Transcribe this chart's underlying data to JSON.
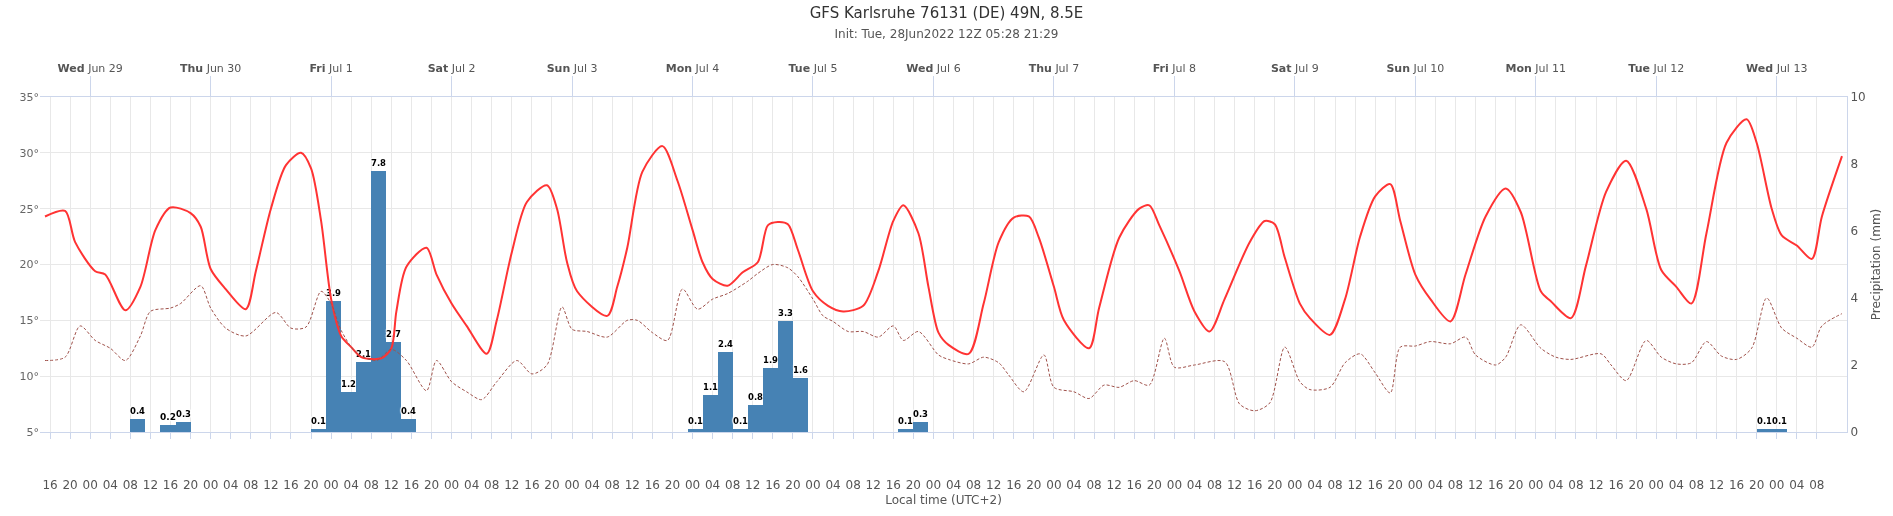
{
  "chart_data": {
    "type": "line",
    "title": "GFS Karlsruhe 76131 (DE) 49N, 8.5E",
    "subtitle": "Init: Tue, 28Jun2022 12Z 05:28 21:29",
    "xlabel": "Local time (UTC+2)",
    "y2label": "Precipitation (mm)",
    "xlim": [
      "2022-06-28T14:00",
      "2022-07-13T14:00"
    ],
    "xticks": [
      {
        "value": "2022-06-28T16:00",
        "label": "16"
      },
      {
        "value": "2022-06-28T20:00",
        "label": "20"
      },
      {
        "value": "2022-06-29T00:00",
        "label": "00"
      },
      {
        "value": "2022-06-29T04:00",
        "label": "04"
      },
      {
        "value": "2022-06-29T08:00",
        "label": "08"
      },
      {
        "value": "2022-06-29T12:00",
        "label": "12"
      },
      {
        "value": "2022-06-29T16:00",
        "label": "16"
      },
      {
        "value": "2022-06-29T20:00",
        "label": "20"
      },
      {
        "value": "2022-06-30T00:00",
        "label": "00"
      },
      {
        "value": "2022-06-30T04:00",
        "label": "04"
      },
      {
        "value": "2022-06-30T08:00",
        "label": "08"
      },
      {
        "value": "2022-06-30T12:00",
        "label": "12"
      },
      {
        "value": "2022-06-30T16:00",
        "label": "16"
      },
      {
        "value": "2022-06-30T20:00",
        "label": "20"
      },
      {
        "value": "2022-07-01T00:00",
        "label": "00"
      },
      {
        "value": "2022-07-01T04:00",
        "label": "04"
      },
      {
        "value": "2022-07-01T08:00",
        "label": "08"
      },
      {
        "value": "2022-07-01T12:00",
        "label": "12"
      },
      {
        "value": "2022-07-01T16:00",
        "label": "16"
      },
      {
        "value": "2022-07-01T20:00",
        "label": "20"
      },
      {
        "value": "2022-07-02T00:00",
        "label": "00"
      },
      {
        "value": "2022-07-02T04:00",
        "label": "04"
      },
      {
        "value": "2022-07-02T08:00",
        "label": "08"
      },
      {
        "value": "2022-07-02T12:00",
        "label": "12"
      },
      {
        "value": "2022-07-02T16:00",
        "label": "16"
      },
      {
        "value": "2022-07-02T20:00",
        "label": "20"
      },
      {
        "value": "2022-07-03T00:00",
        "label": "00"
      },
      {
        "value": "2022-07-03T04:00",
        "label": "04"
      },
      {
        "value": "2022-07-03T08:00",
        "label": "08"
      },
      {
        "value": "2022-07-03T12:00",
        "label": "12"
      },
      {
        "value": "2022-07-03T16:00",
        "label": "16"
      },
      {
        "value": "2022-07-03T20:00",
        "label": "20"
      },
      {
        "value": "2022-07-04T00:00",
        "label": "00"
      },
      {
        "value": "2022-07-04T04:00",
        "label": "04"
      },
      {
        "value": "2022-07-04T08:00",
        "label": "08"
      },
      {
        "value": "2022-07-04T12:00",
        "label": "12"
      },
      {
        "value": "2022-07-04T16:00",
        "label": "16"
      },
      {
        "value": "2022-07-04T20:00",
        "label": "20"
      },
      {
        "value": "2022-07-05T00:00",
        "label": "00"
      },
      {
        "value": "2022-07-05T04:00",
        "label": "04"
      },
      {
        "value": "2022-07-05T08:00",
        "label": "08"
      },
      {
        "value": "2022-07-05T12:00",
        "label": "12"
      },
      {
        "value": "2022-07-05T16:00",
        "label": "16"
      },
      {
        "value": "2022-07-05T20:00",
        "label": "20"
      },
      {
        "value": "2022-07-06T00:00",
        "label": "00"
      },
      {
        "value": "2022-07-06T04:00",
        "label": "04"
      },
      {
        "value": "2022-07-06T08:00",
        "label": "08"
      },
      {
        "value": "2022-07-06T12:00",
        "label": "12"
      },
      {
        "value": "2022-07-06T16:00",
        "label": "16"
      },
      {
        "value": "2022-07-06T20:00",
        "label": "20"
      },
      {
        "value": "2022-07-07T00:00",
        "label": "00"
      },
      {
        "value": "2022-07-07T04:00",
        "label": "04"
      },
      {
        "value": "2022-07-07T08:00",
        "label": "08"
      },
      {
        "value": "2022-07-07T12:00",
        "label": "12"
      },
      {
        "value": "2022-07-07T16:00",
        "label": "16"
      },
      {
        "value": "2022-07-07T20:00",
        "label": "20"
      },
      {
        "value": "2022-07-08T00:00",
        "label": "00"
      },
      {
        "value": "2022-07-08T04:00",
        "label": "04"
      },
      {
        "value": "2022-07-08T08:00",
        "label": "08"
      },
      {
        "value": "2022-07-08T12:00",
        "label": "12"
      },
      {
        "value": "2022-07-08T16:00",
        "label": "16"
      },
      {
        "value": "2022-07-08T20:00",
        "label": "20"
      },
      {
        "value": "2022-07-09T00:00",
        "label": "00"
      },
      {
        "value": "2022-07-09T04:00",
        "label": "04"
      },
      {
        "value": "2022-07-09T08:00",
        "label": "08"
      },
      {
        "value": "2022-07-09T12:00",
        "label": "12"
      },
      {
        "value": "2022-07-09T16:00",
        "label": "16"
      },
      {
        "value": "2022-07-09T20:00",
        "label": "20"
      },
      {
        "value": "2022-07-10T00:00",
        "label": "00"
      },
      {
        "value": "2022-07-10T04:00",
        "label": "04"
      },
      {
        "value": "2022-07-10T08:00",
        "label": "08"
      },
      {
        "value": "2022-07-10T12:00",
        "label": "12"
      },
      {
        "value": "2022-07-10T16:00",
        "label": "16"
      },
      {
        "value": "2022-07-10T20:00",
        "label": "20"
      },
      {
        "value": "2022-07-11T00:00",
        "label": "00"
      },
      {
        "value": "2022-07-11T04:00",
        "label": "04"
      },
      {
        "value": "2022-07-11T08:00",
        "label": "08"
      },
      {
        "value": "2022-07-11T12:00",
        "label": "12"
      },
      {
        "value": "2022-07-11T16:00",
        "label": "16"
      },
      {
        "value": "2022-07-11T20:00",
        "label": "20"
      },
      {
        "value": "2022-07-12T00:00",
        "label": "00"
      },
      {
        "value": "2022-07-12T04:00",
        "label": "04"
      },
      {
        "value": "2022-07-12T08:00",
        "label": "08"
      },
      {
        "value": "2022-07-12T12:00",
        "label": "12"
      },
      {
        "value": "2022-07-12T16:00",
        "label": "16"
      },
      {
        "value": "2022-07-12T20:00",
        "label": "20"
      },
      {
        "value": "2022-07-13T00:00",
        "label": "00"
      },
      {
        "value": "2022-07-13T04:00",
        "label": "04"
      },
      {
        "value": "2022-07-13T08:00",
        "label": "08"
      }
    ],
    "x2lim": [
      "2022-06-28T14:00",
      "2022-07-13T14:00"
    ],
    "x2ticks": [
      {
        "value": "2022-06-29",
        "label": "Wed Jun 29"
      },
      {
        "value": "2022-06-30",
        "label": "Thu Jun 30"
      },
      {
        "value": "2022-07-01",
        "label": "Fri Jul 1"
      },
      {
        "value": "2022-07-02",
        "label": "Sat Jul 2"
      },
      {
        "value": "2022-07-03",
        "label": "Sun Jul 3"
      },
      {
        "value": "2022-07-04",
        "label": "Mon Jul 4"
      },
      {
        "value": "2022-07-05",
        "label": "Tue Jul 5"
      },
      {
        "value": "2022-07-06",
        "label": "Wed Jul 6"
      },
      {
        "value": "2022-07-07",
        "label": "Thu Jul 7"
      },
      {
        "value": "2022-07-08",
        "label": "Fri Jul 8"
      },
      {
        "value": "2022-07-09",
        "label": "Sat Jul 9"
      },
      {
        "value": "2022-07-10",
        "label": "Sun Jul 10"
      },
      {
        "value": "2022-07-11",
        "label": "Mon Jul 11"
      },
      {
        "value": "2022-07-12",
        "label": "Tue Jul 12"
      },
      {
        "value": "2022-07-13",
        "label": "Wed Jul 13"
      }
    ],
    "ylim": [
      5,
      35
    ],
    "yticks": [
      {
        "value": 5,
        "label": "5°"
      },
      {
        "value": 10,
        "label": "10°"
      },
      {
        "value": 15,
        "label": "15°"
      },
      {
        "value": 20,
        "label": "20°"
      },
      {
        "value": 25,
        "label": "25°"
      },
      {
        "value": 30,
        "label": "30°"
      },
      {
        "value": 35,
        "label": "35°"
      }
    ],
    "y2lim": [
      0,
      10
    ],
    "y2ticks": [
      0,
      2,
      4,
      6,
      8,
      10
    ],
    "grid": true,
    "marker": "none",
    "series": [
      {
        "type": "bar",
        "axis": "y2",
        "color": "#4682b4",
        "x": [
          "2022-06-29T09:30",
          "2022-06-29T15:30",
          "2022-06-29T18:30",
          "2022-06-30T21:30",
          "2022-07-01T00:30",
          "2022-07-01T03:30",
          "2022-07-01T06:30",
          "2022-07-01T09:30",
          "2022-07-01T12:30",
          "2022-07-01T15:30",
          "2022-07-04T00:30",
          "2022-07-04T03:30",
          "2022-07-04T06:30",
          "2022-07-04T09:30",
          "2022-07-04T12:30",
          "2022-07-04T15:30",
          "2022-07-04T18:30",
          "2022-07-04T21:30",
          "2022-07-05T18:30",
          "2022-07-05T21:30",
          "2022-07-12T21:30",
          "2022-07-13T00:30"
        ],
        "values": [
          0.4,
          0.2,
          0.3,
          0.1,
          3.9,
          1.2,
          2.1,
          7.8,
          2.7,
          0.4,
          0.1,
          1.1,
          2.4,
          0.1,
          0.8,
          1.9,
          3.3,
          1.6,
          0.1,
          0.3,
          0.1,
          0.1
        ],
        "value_labels": [
          "0.4",
          "0.2",
          "0.3",
          "0.1",
          "3.9",
          "1.2",
          "2.1",
          "7.8",
          "2.7",
          "0.4",
          "0.1",
          "1.1",
          "2.4",
          "0.1",
          "0.8",
          "1.9",
          "3.3",
          "1.6",
          "0.1",
          "0.3",
          "0.1",
          "0.1"
        ]
      },
      {
        "line_style": "solid",
        "color": "#ff3333",
        "x": [
          "2022-06-28T15:00",
          "2022-06-28T19:00",
          "2022-06-28T21:00",
          "2022-06-29T01:00",
          "2022-06-29T03:00",
          "2022-06-29T07:00",
          "2022-06-29T10:00",
          "2022-06-29T13:00",
          "2022-06-29T16:00",
          "2022-06-29T20:00",
          "2022-06-29T22:00",
          "2022-06-30T00:00",
          "2022-06-30T03:00",
          "2022-06-30T07:00",
          "2022-06-30T09:00",
          "2022-06-30T12:00",
          "2022-06-30T15:00",
          "2022-06-30T18:00",
          "2022-06-30T20:00",
          "2022-06-30T22:00",
          "2022-07-01T00:00",
          "2022-07-01T02:00",
          "2022-07-01T04:00",
          "2022-07-01T06:00",
          "2022-07-01T10:00",
          "2022-07-01T12:00",
          "2022-07-01T13:00",
          "2022-07-01T15:00",
          "2022-07-01T19:00",
          "2022-07-01T21:00",
          "2022-07-02T00:00",
          "2022-07-02T03:00",
          "2022-07-02T07:00",
          "2022-07-02T09:00",
          "2022-07-02T12:00",
          "2022-07-02T15:00",
          "2022-07-02T19:00",
          "2022-07-02T21:00",
          "2022-07-02T23:00",
          "2022-07-03T01:00",
          "2022-07-03T07:00",
          "2022-07-03T09:00",
          "2022-07-03T11:00",
          "2022-07-03T14:00",
          "2022-07-03T18:00",
          "2022-07-03T21:00",
          "2022-07-04T00:00",
          "2022-07-04T02:00",
          "2022-07-04T04:00",
          "2022-07-04T07:00",
          "2022-07-04T10:00",
          "2022-07-04T13:00",
          "2022-07-04T15:00",
          "2022-07-04T17:00",
          "2022-07-04T19:00",
          "2022-07-04T21:00",
          "2022-07-05T00:00",
          "2022-07-05T03:00",
          "2022-07-05T06:00",
          "2022-07-05T10:00",
          "2022-07-05T13:00",
          "2022-07-05T16:00",
          "2022-07-05T18:00",
          "2022-07-05T21:00",
          "2022-07-05T23:00",
          "2022-07-06T01:00",
          "2022-07-06T03:00",
          "2022-07-06T07:00",
          "2022-07-06T10:00",
          "2022-07-06T13:00",
          "2022-07-06T16:00",
          "2022-07-06T19:00",
          "2022-07-06T21:00",
          "2022-07-07T00:00",
          "2022-07-07T02:00",
          "2022-07-07T07:00",
          "2022-07-07T09:00",
          "2022-07-07T13:00",
          "2022-07-07T17:00",
          "2022-07-07T19:00",
          "2022-07-07T21:00",
          "2022-07-08T01:00",
          "2022-07-08T04:00",
          "2022-07-08T07:00",
          "2022-07-08T10:00",
          "2022-07-08T15:00",
          "2022-07-08T18:00",
          "2022-07-08T20:00",
          "2022-07-08T22:00",
          "2022-07-09T01:00",
          "2022-07-09T03:00",
          "2022-07-09T07:00",
          "2022-07-09T10:00",
          "2022-07-09T13:00",
          "2022-07-09T16:00",
          "2022-07-09T19:00",
          "2022-07-09T21:00",
          "2022-07-10T00:00",
          "2022-07-10T03:00",
          "2022-07-10T07:00",
          "2022-07-10T10:00",
          "2022-07-10T14:00",
          "2022-07-10T18:00",
          "2022-07-10T21:00",
          "2022-07-11T01:00",
          "2022-07-11T03:00",
          "2022-07-11T07:00",
          "2022-07-11T10:00",
          "2022-07-11T14:00",
          "2022-07-11T18:00",
          "2022-07-11T22:00",
          "2022-07-12T01:00",
          "2022-07-12T04:00",
          "2022-07-12T07:00",
          "2022-07-12T10:00",
          "2022-07-12T14:00",
          "2022-07-12T18:00",
          "2022-07-12T20:00",
          "2022-07-12T23:00",
          "2022-07-13T01:00",
          "2022-07-13T04:00",
          "2022-07-13T07:00",
          "2022-07-13T09:00",
          "2022-07-13T13:00"
        ],
        "values": [
          24.3,
          24.8,
          22.0,
          19.4,
          19.1,
          15.9,
          18.0,
          23.1,
          25.1,
          24.6,
          23.4,
          19.6,
          17.8,
          16.0,
          19.4,
          25.0,
          28.9,
          30.0,
          28.6,
          23.9,
          16.9,
          13.6,
          12.6,
          11.7,
          11.6,
          12.5,
          15.8,
          19.8,
          21.5,
          19.1,
          16.5,
          14.5,
          12.0,
          15.0,
          21.1,
          25.6,
          27.1,
          25.0,
          20.2,
          17.6,
          15.4,
          18.0,
          21.5,
          28.3,
          30.6,
          27.5,
          23.1,
          20.2,
          18.7,
          18.1,
          19.3,
          20.2,
          23.5,
          23.8,
          23.6,
          21.3,
          17.6,
          16.3,
          15.8,
          16.3,
          19.4,
          23.9,
          25.3,
          22.8,
          18.0,
          13.9,
          12.8,
          12.0,
          16.5,
          22.0,
          24.2,
          24.3,
          22.4,
          18.0,
          15.0,
          12.5,
          16.1,
          22.4,
          25.0,
          25.3,
          23.5,
          19.4,
          15.8,
          14.0,
          16.9,
          22.0,
          23.9,
          23.6,
          20.6,
          16.5,
          15.2,
          13.7,
          16.9,
          22.5,
          26.1,
          27.2,
          23.9,
          19.1,
          16.9,
          14.9,
          19.1,
          24.3,
          26.8,
          24.7,
          17.6,
          16.7,
          15.2,
          19.9,
          26.5,
          29.3,
          25.0,
          19.5,
          18.0,
          16.5,
          22.8,
          30.9,
          33.0,
          30.9,
          25.0,
          22.6,
          21.7,
          20.5,
          24.3,
          29.7
        ]
      },
      {
        "line_style": "dashed",
        "color": "#a0524b",
        "x": [
          "2022-06-28T15:00",
          "2022-06-28T19:00",
          "2022-06-28T22:00",
          "2022-06-29T01:00",
          "2022-06-29T04:00",
          "2022-06-29T07:00",
          "2022-06-29T10:00",
          "2022-06-29T12:00",
          "2022-06-29T16:00",
          "2022-06-29T18:00",
          "2022-06-29T22:00",
          "2022-06-30T00:00",
          "2022-06-30T03:00",
          "2022-06-30T07:00",
          "2022-06-30T13:00",
          "2022-06-30T16:00",
          "2022-06-30T19:00",
          "2022-06-30T22:00",
          "2022-07-01T00:00",
          "2022-07-01T02:00",
          "2022-07-01T05:00",
          "2022-07-01T09:00",
          "2022-07-01T12:00",
          "2022-07-01T15:00",
          "2022-07-01T19:00",
          "2022-07-01T21:00",
          "2022-07-02T00:00",
          "2022-07-02T03:00",
          "2022-07-02T06:00",
          "2022-07-02T09:00",
          "2022-07-02T13:00",
          "2022-07-02T16:00",
          "2022-07-02T19:00",
          "2022-07-02T22:00",
          "2022-07-03T00:00",
          "2022-07-03T03:00",
          "2022-07-03T07:00",
          "2022-07-03T11:00",
          "2022-07-03T13:00",
          "2022-07-03T16:00",
          "2022-07-03T19:00",
          "2022-07-03T22:00",
          "2022-07-04T01:00",
          "2022-07-04T04:00",
          "2022-07-04T07:00",
          "2022-07-04T11:00",
          "2022-07-04T13:00",
          "2022-07-04T16:00",
          "2022-07-04T19:00",
          "2022-07-04T21:00",
          "2022-07-05T00:00",
          "2022-07-05T02:00",
          "2022-07-05T04:00",
          "2022-07-05T07:00",
          "2022-07-05T10:00",
          "2022-07-05T13:00",
          "2022-07-05T16:00",
          "2022-07-05T18:00",
          "2022-07-05T21:00",
          "2022-07-06T01:00",
          "2022-07-06T03:00",
          "2022-07-06T07:00",
          "2022-07-06T10:00",
          "2022-07-06T13:00",
          "2022-07-06T15:00",
          "2022-07-06T18:00",
          "2022-07-06T22:00",
          "2022-07-07T00:00",
          "2022-07-07T04:00",
          "2022-07-07T07:00",
          "2022-07-07T10:00",
          "2022-07-07T13:00",
          "2022-07-07T16:00",
          "2022-07-07T19:00",
          "2022-07-07T22:00",
          "2022-07-08T00:00",
          "2022-07-08T04:00",
          "2022-07-08T10:00",
          "2022-07-08T13:00",
          "2022-07-08T16:00",
          "2022-07-08T19:00",
          "2022-07-08T22:00",
          "2022-07-09T01:00",
          "2022-07-09T03:00",
          "2022-07-09T07:00",
          "2022-07-09T10:00",
          "2022-07-09T13:00",
          "2022-07-09T16:00",
          "2022-07-09T19:00",
          "2022-07-09T21:00",
          "2022-07-10T00:00",
          "2022-07-10T03:00",
          "2022-07-10T07:00",
          "2022-07-10T10:00",
          "2022-07-10T12:00",
          "2022-07-10T16:00",
          "2022-07-10T18:00",
          "2022-07-10T21:00",
          "2022-07-11T01:00",
          "2022-07-11T04:00",
          "2022-07-11T07:00",
          "2022-07-11T13:00",
          "2022-07-11T15:00",
          "2022-07-11T18:00",
          "2022-07-11T22:00",
          "2022-07-12T01:00",
          "2022-07-12T04:00",
          "2022-07-12T07:00",
          "2022-07-12T10:00",
          "2022-07-12T13:00",
          "2022-07-12T16:00",
          "2022-07-12T19:00",
          "2022-07-12T22:00",
          "2022-07-13T01:00",
          "2022-07-13T04:00",
          "2022-07-13T07:00",
          "2022-07-13T09:00",
          "2022-07-13T13:00"
        ],
        "values": [
          11.4,
          11.7,
          14.5,
          13.2,
          12.5,
          11.4,
          13.6,
          15.8,
          16.1,
          16.5,
          18.1,
          16.1,
          14.3,
          13.6,
          15.7,
          14.3,
          14.4,
          17.6,
          16.5,
          14.1,
          12.1,
          11.4,
          12.4,
          11.4,
          8.7,
          11.4,
          9.5,
          8.6,
          7.9,
          9.5,
          11.4,
          10.2,
          11.0,
          16.2,
          14.2,
          14.0,
          13.5,
          15.0,
          15.0,
          13.9,
          13.2,
          17.8,
          16.0,
          16.9,
          17.4,
          18.5,
          19.2,
          20.0,
          19.7,
          18.9,
          16.9,
          15.4,
          14.9,
          14.0,
          14.0,
          13.5,
          14.5,
          13.2,
          14.0,
          11.9,
          11.5,
          11.1,
          11.7,
          11.2,
          10.1,
          8.6,
          11.9,
          9.0,
          8.6,
          8.0,
          9.2,
          9.0,
          9.6,
          9.2,
          13.4,
          10.8,
          11.0,
          11.3,
          7.5,
          6.9,
          7.6,
          12.6,
          9.5,
          8.8,
          9.0,
          11.2,
          12.0,
          10.3,
          8.5,
          12.6,
          12.7,
          13.1,
          12.9,
          13.5,
          11.9,
          11.0,
          11.7,
          14.6,
          12.5,
          11.7,
          11.5,
          12.0,
          11.0,
          9.6,
          13.2,
          11.7,
          11.1,
          11.2,
          13.1,
          11.8,
          11.5,
          12.5,
          17.0,
          14.3,
          13.4,
          12.6,
          14.5,
          15.6
        ]
      }
    ]
  }
}
